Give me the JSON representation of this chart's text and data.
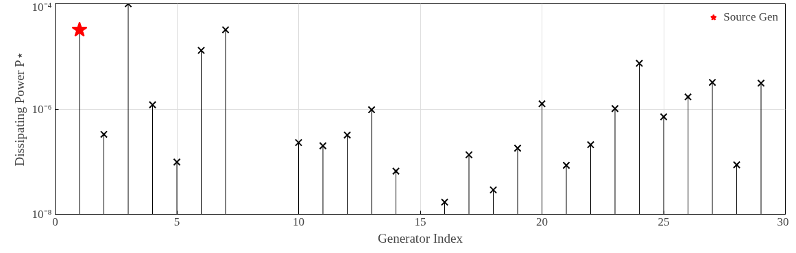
{
  "chart_data": {
    "type": "lollipop",
    "xlabel": "Generator Index",
    "ylabel": "Dissipating Power P⋆",
    "log": "y",
    "grid": true,
    "legend": "top right",
    "xlim": [
      0,
      30
    ],
    "xticks": [
      0,
      5,
      10,
      15,
      20,
      25,
      30
    ],
    "ylim": [
      1e-08,
      0.0001
    ],
    "yticks": [
      {
        "value": 1e-08,
        "label": "10⁻⁸"
      },
      {
        "value": 1e-06,
        "label": "10⁻⁶"
      },
      {
        "value": 0.0001,
        "label": "10⁻⁴"
      }
    ],
    "series": [
      {
        "name": "Source Gen",
        "color": "#ff0000",
        "marker": "star",
        "x": [
          1
        ],
        "values": [
          3.2e-05
        ]
      },
      {
        "color": "#000000",
        "marker": "cross",
        "x": [
          2,
          3,
          4,
          5,
          6,
          7,
          10,
          11,
          12,
          13,
          14,
          16,
          17,
          18,
          19,
          20,
          21,
          22,
          23,
          24,
          25,
          26,
          27,
          28,
          29
        ],
        "values": [
          3.3e-07,
          0.0001,
          1.2e-06,
          9.8e-08,
          1.3e-05,
          3.2e-05,
          2.3e-07,
          2e-07,
          3.2e-07,
          9.7e-07,
          6.6e-08,
          1.7e-08,
          1.35e-07,
          2.9e-08,
          1.8e-07,
          1.26e-06,
          8.5e-08,
          2.1e-07,
          1.02e-06,
          7.4e-06,
          7.1e-07,
          1.7e-06,
          3.2e-06,
          8.7e-08,
          3.1e-06
        ]
      }
    ]
  }
}
